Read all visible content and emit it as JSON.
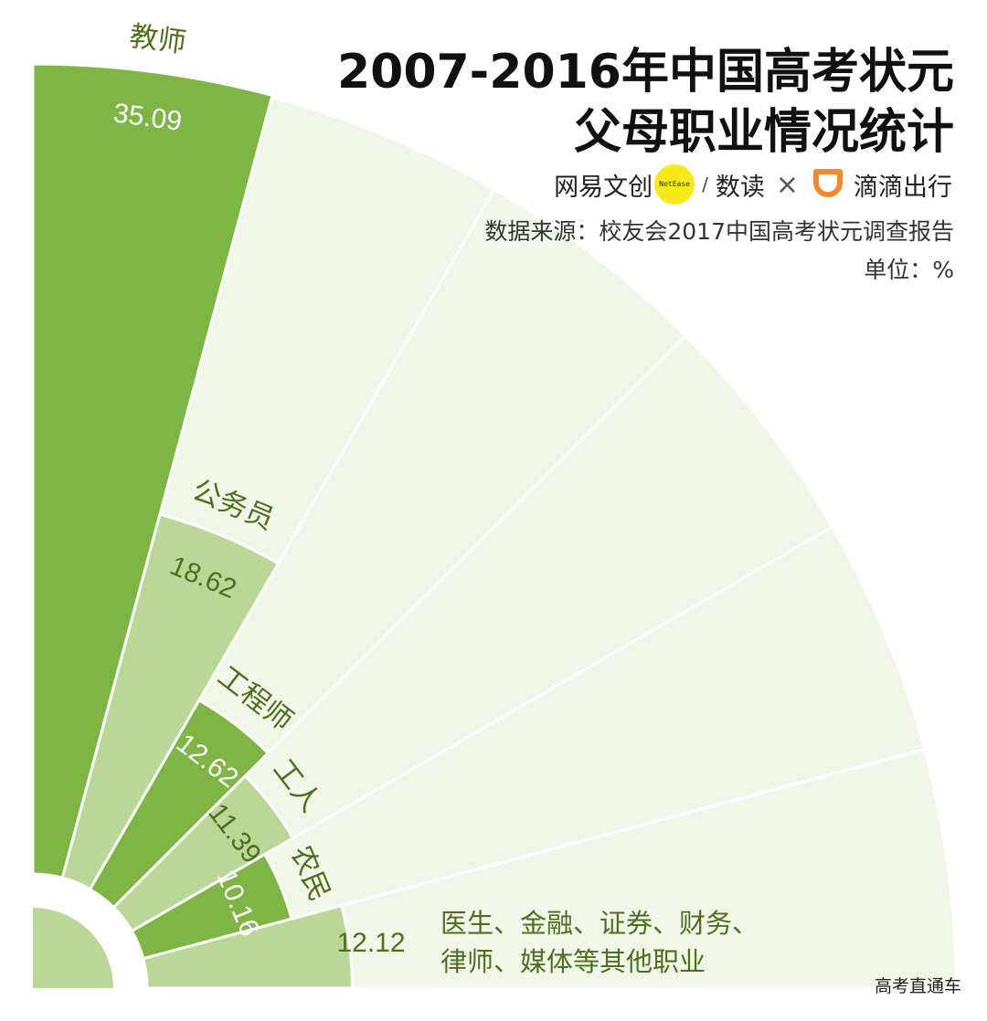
{
  "title": [
    "2007-2016年中国高考状元",
    "父母职业情况统计"
  ],
  "brand": {
    "netease_text": "网易文创",
    "netease_badge": "NetEase",
    "shudu": "数读",
    "separator": "×",
    "didi": "滴滴出行"
  },
  "source": "数据来源：校友会2017中国高考状元调查报告",
  "unit": "单位：%",
  "watermark": "高考直通车",
  "colors": {
    "dark_green": "#7eb544",
    "light_green": "#b9d898",
    "background_sector": "#f1f7e8",
    "label_green": "#4f6e1f"
  },
  "chart_data": {
    "type": "pie",
    "categories": [
      "教师",
      "公务员",
      "工程师",
      "工人",
      "农民",
      "医生、金融、证券、财务、律师、媒体等其他职业"
    ],
    "values": [
      35.09,
      18.62,
      12.62,
      11.39,
      10.16,
      12.12
    ],
    "value_labels": [
      "35.09",
      "18.62",
      "12.62",
      "11.39",
      "10.16",
      "12.12"
    ],
    "other_label_lines": [
      "医生、金融、证券、财务、",
      "律师、媒体等其他职业"
    ]
  }
}
